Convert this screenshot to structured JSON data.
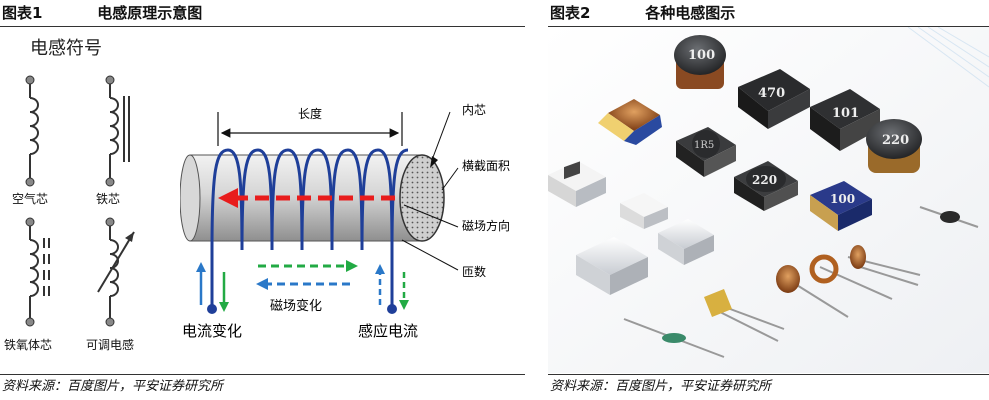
{
  "figure1": {
    "number": "图表1",
    "title": "电感原理示意图",
    "symbols_heading": "电感符号",
    "symbols": [
      {
        "label": "空气芯",
        "icon": "inductor-air-core-icon"
      },
      {
        "label": "铁芯",
        "icon": "inductor-iron-core-icon"
      },
      {
        "label": "铁氧体芯",
        "icon": "inductor-ferrite-core-icon"
      },
      {
        "label": "可调电感",
        "icon": "inductor-adjustable-icon"
      }
    ],
    "diagram_labels": {
      "length": "长度",
      "core": "内芯",
      "cross_section": "横截面积",
      "flux_direction": "磁场方向",
      "turns": "匝数",
      "current_change": "电流变化",
      "field_change": "磁场变化",
      "induced_current": "感应电流"
    },
    "source": "资料来源：百度图片，平安证券研究所"
  },
  "figure2": {
    "number": "图表2",
    "title": "各种电感图示",
    "component_markings": [
      "100",
      "470",
      "101",
      "1R5",
      "220",
      "220",
      "100"
    ],
    "source": "资料来源：百度图片，平安证券研究所"
  },
  "colors": {
    "coil": "#1f3f99",
    "flux_arrow": "#e81c1c",
    "green_arrow": "#22aa44",
    "blue_arrow": "#2a78c8",
    "core_body": "#c9c9c9"
  }
}
